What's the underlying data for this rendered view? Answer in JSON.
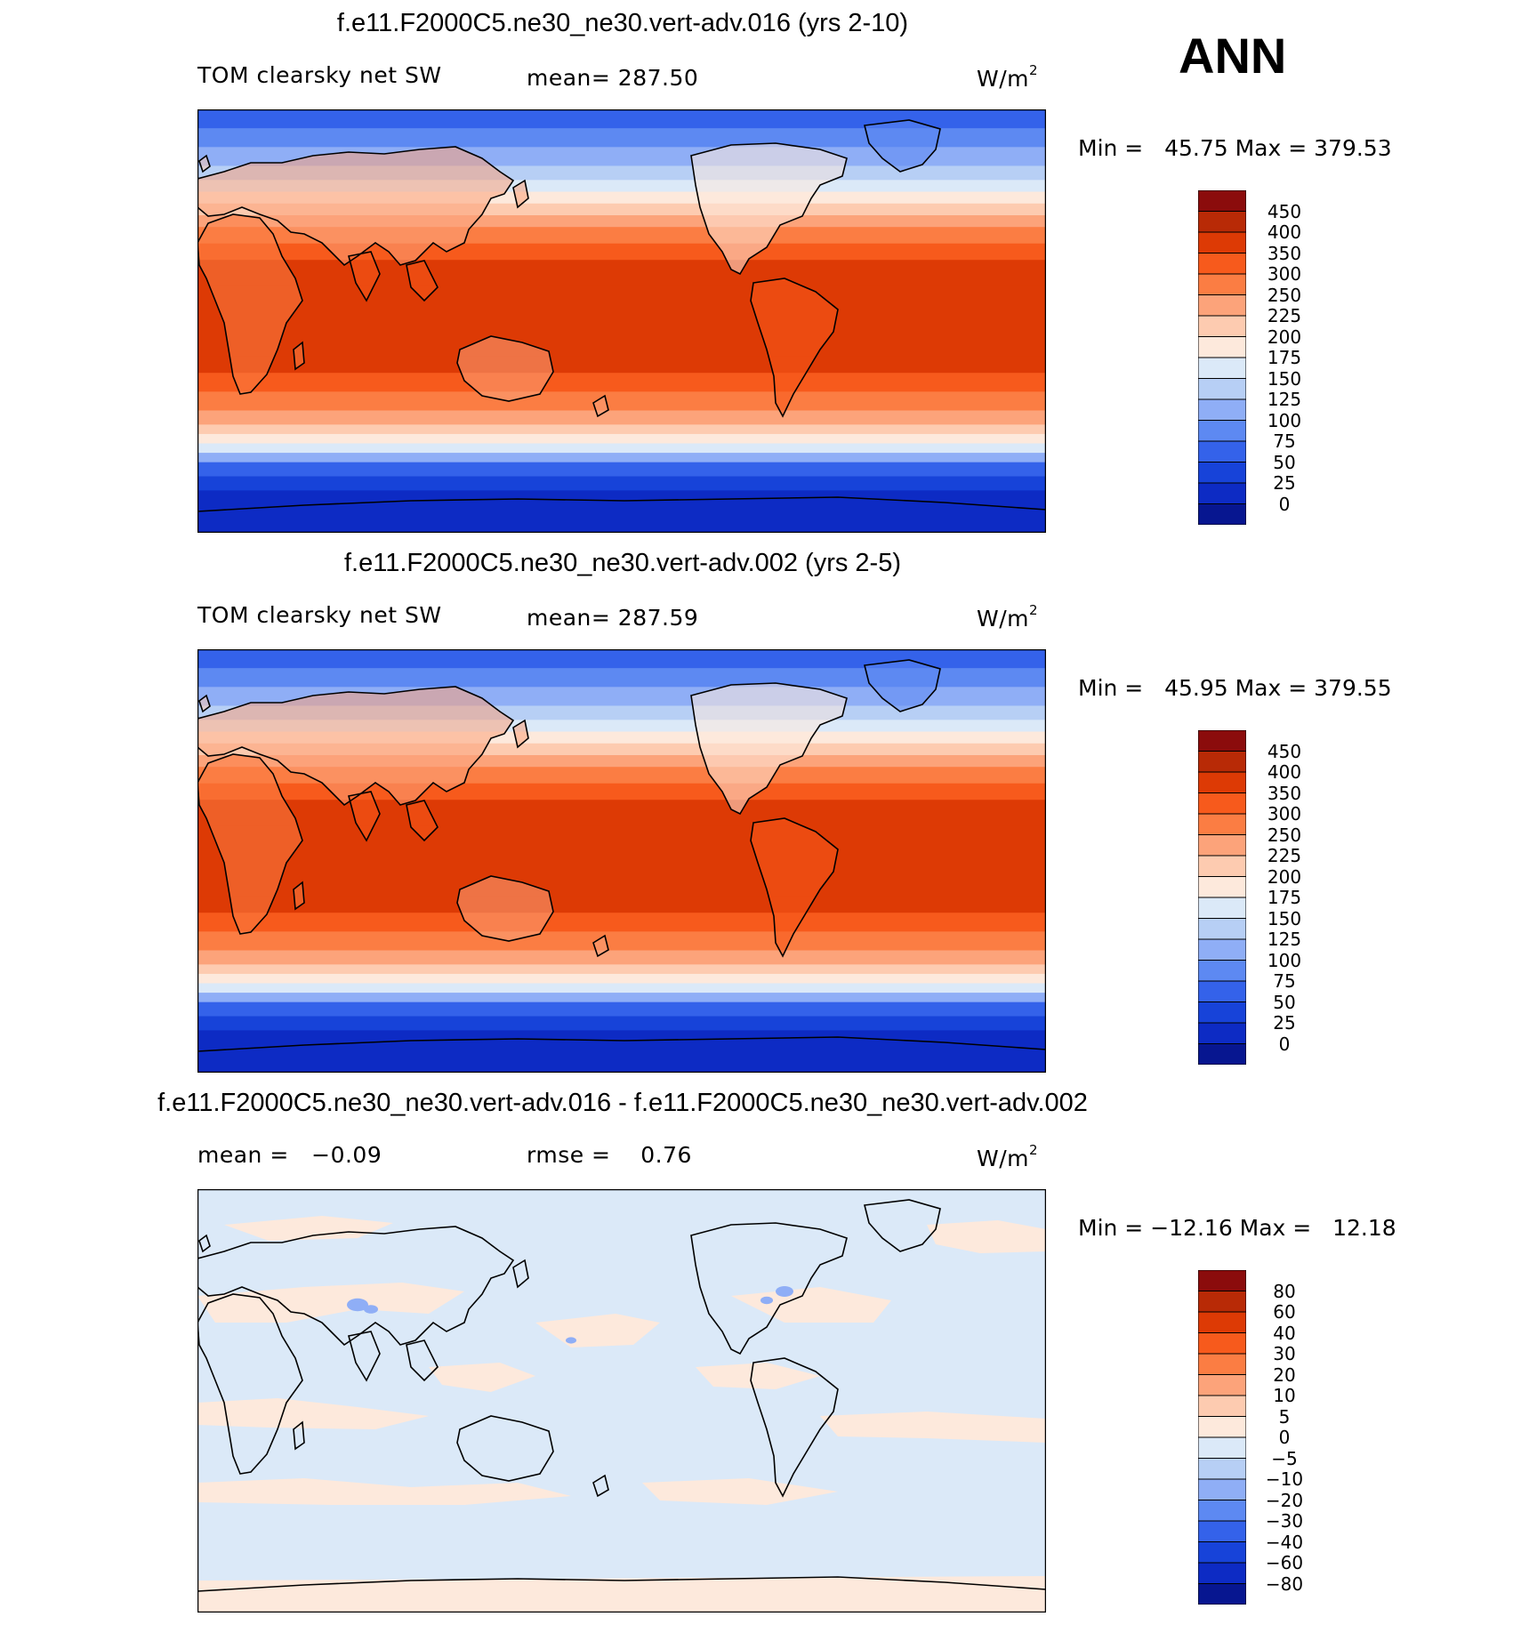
{
  "season": "ANN",
  "panels": [
    {
      "title": "f.e11.F2000C5.ne30_ne30.vert-adv.016 (yrs 2-10)",
      "variable": "TOM clearsky net SW",
      "stat": "mean=  287.50",
      "units_base": "W/m",
      "units_exp": "2",
      "minmax": "Min =   45.75 Max = 379.53",
      "colorbar_labels": [
        "450",
        "400",
        "350",
        "300",
        "250",
        "225",
        "200",
        "175",
        "150",
        "125",
        "100",
        "75",
        "50",
        "25",
        "0"
      ],
      "kind": "absolute"
    },
    {
      "title": "f.e11.F2000C5.ne30_ne30.vert-adv.002 (yrs 2-5)",
      "variable": "TOM clearsky net SW",
      "stat": "mean=  287.59",
      "units_base": "W/m",
      "units_exp": "2",
      "minmax": "Min =   45.95 Max = 379.55",
      "colorbar_labels": [
        "450",
        "400",
        "350",
        "300",
        "250",
        "225",
        "200",
        "175",
        "150",
        "125",
        "100",
        "75",
        "50",
        "25",
        "0"
      ],
      "kind": "absolute"
    },
    {
      "title": "f.e11.F2000C5.ne30_ne30.vert-adv.016 - f.e11.F2000C5.ne30_ne30.vert-adv.002",
      "variable": "mean =   −0.09",
      "stat": "rmse =    0.76",
      "units_base": "W/m",
      "units_exp": "2",
      "minmax": "Min = −12.16 Max =   12.18",
      "colorbar_labels": [
        "80",
        "60",
        "40",
        "30",
        "20",
        "10",
        "5",
        "0",
        "−5",
        "−10",
        "−20",
        "−30",
        "−40",
        "−60",
        "−80"
      ],
      "kind": "difference"
    }
  ],
  "colors": {
    "absolute_scale": [
      "#8b0c0c",
      "#b82a06",
      "#dd3a05",
      "#f75a1c",
      "#fb7d43",
      "#fca37a",
      "#fdcbb0",
      "#fde9dc",
      "#dbe9f8",
      "#b7cff5",
      "#8faef6",
      "#5d89f2",
      "#3462ea",
      "#1743d9",
      "#0d2bc4",
      "#071690"
    ],
    "difference_scale": [
      "#8b0c0c",
      "#b82a06",
      "#dd3a05",
      "#f75a1c",
      "#fb7d43",
      "#fca37a",
      "#fdcbb0",
      "#fde9dc",
      "#dbe9f8",
      "#b7cff5",
      "#8faef6",
      "#5d89f2",
      "#3462ea",
      "#1743d9",
      "#0d2bc4",
      "#071690"
    ]
  }
}
